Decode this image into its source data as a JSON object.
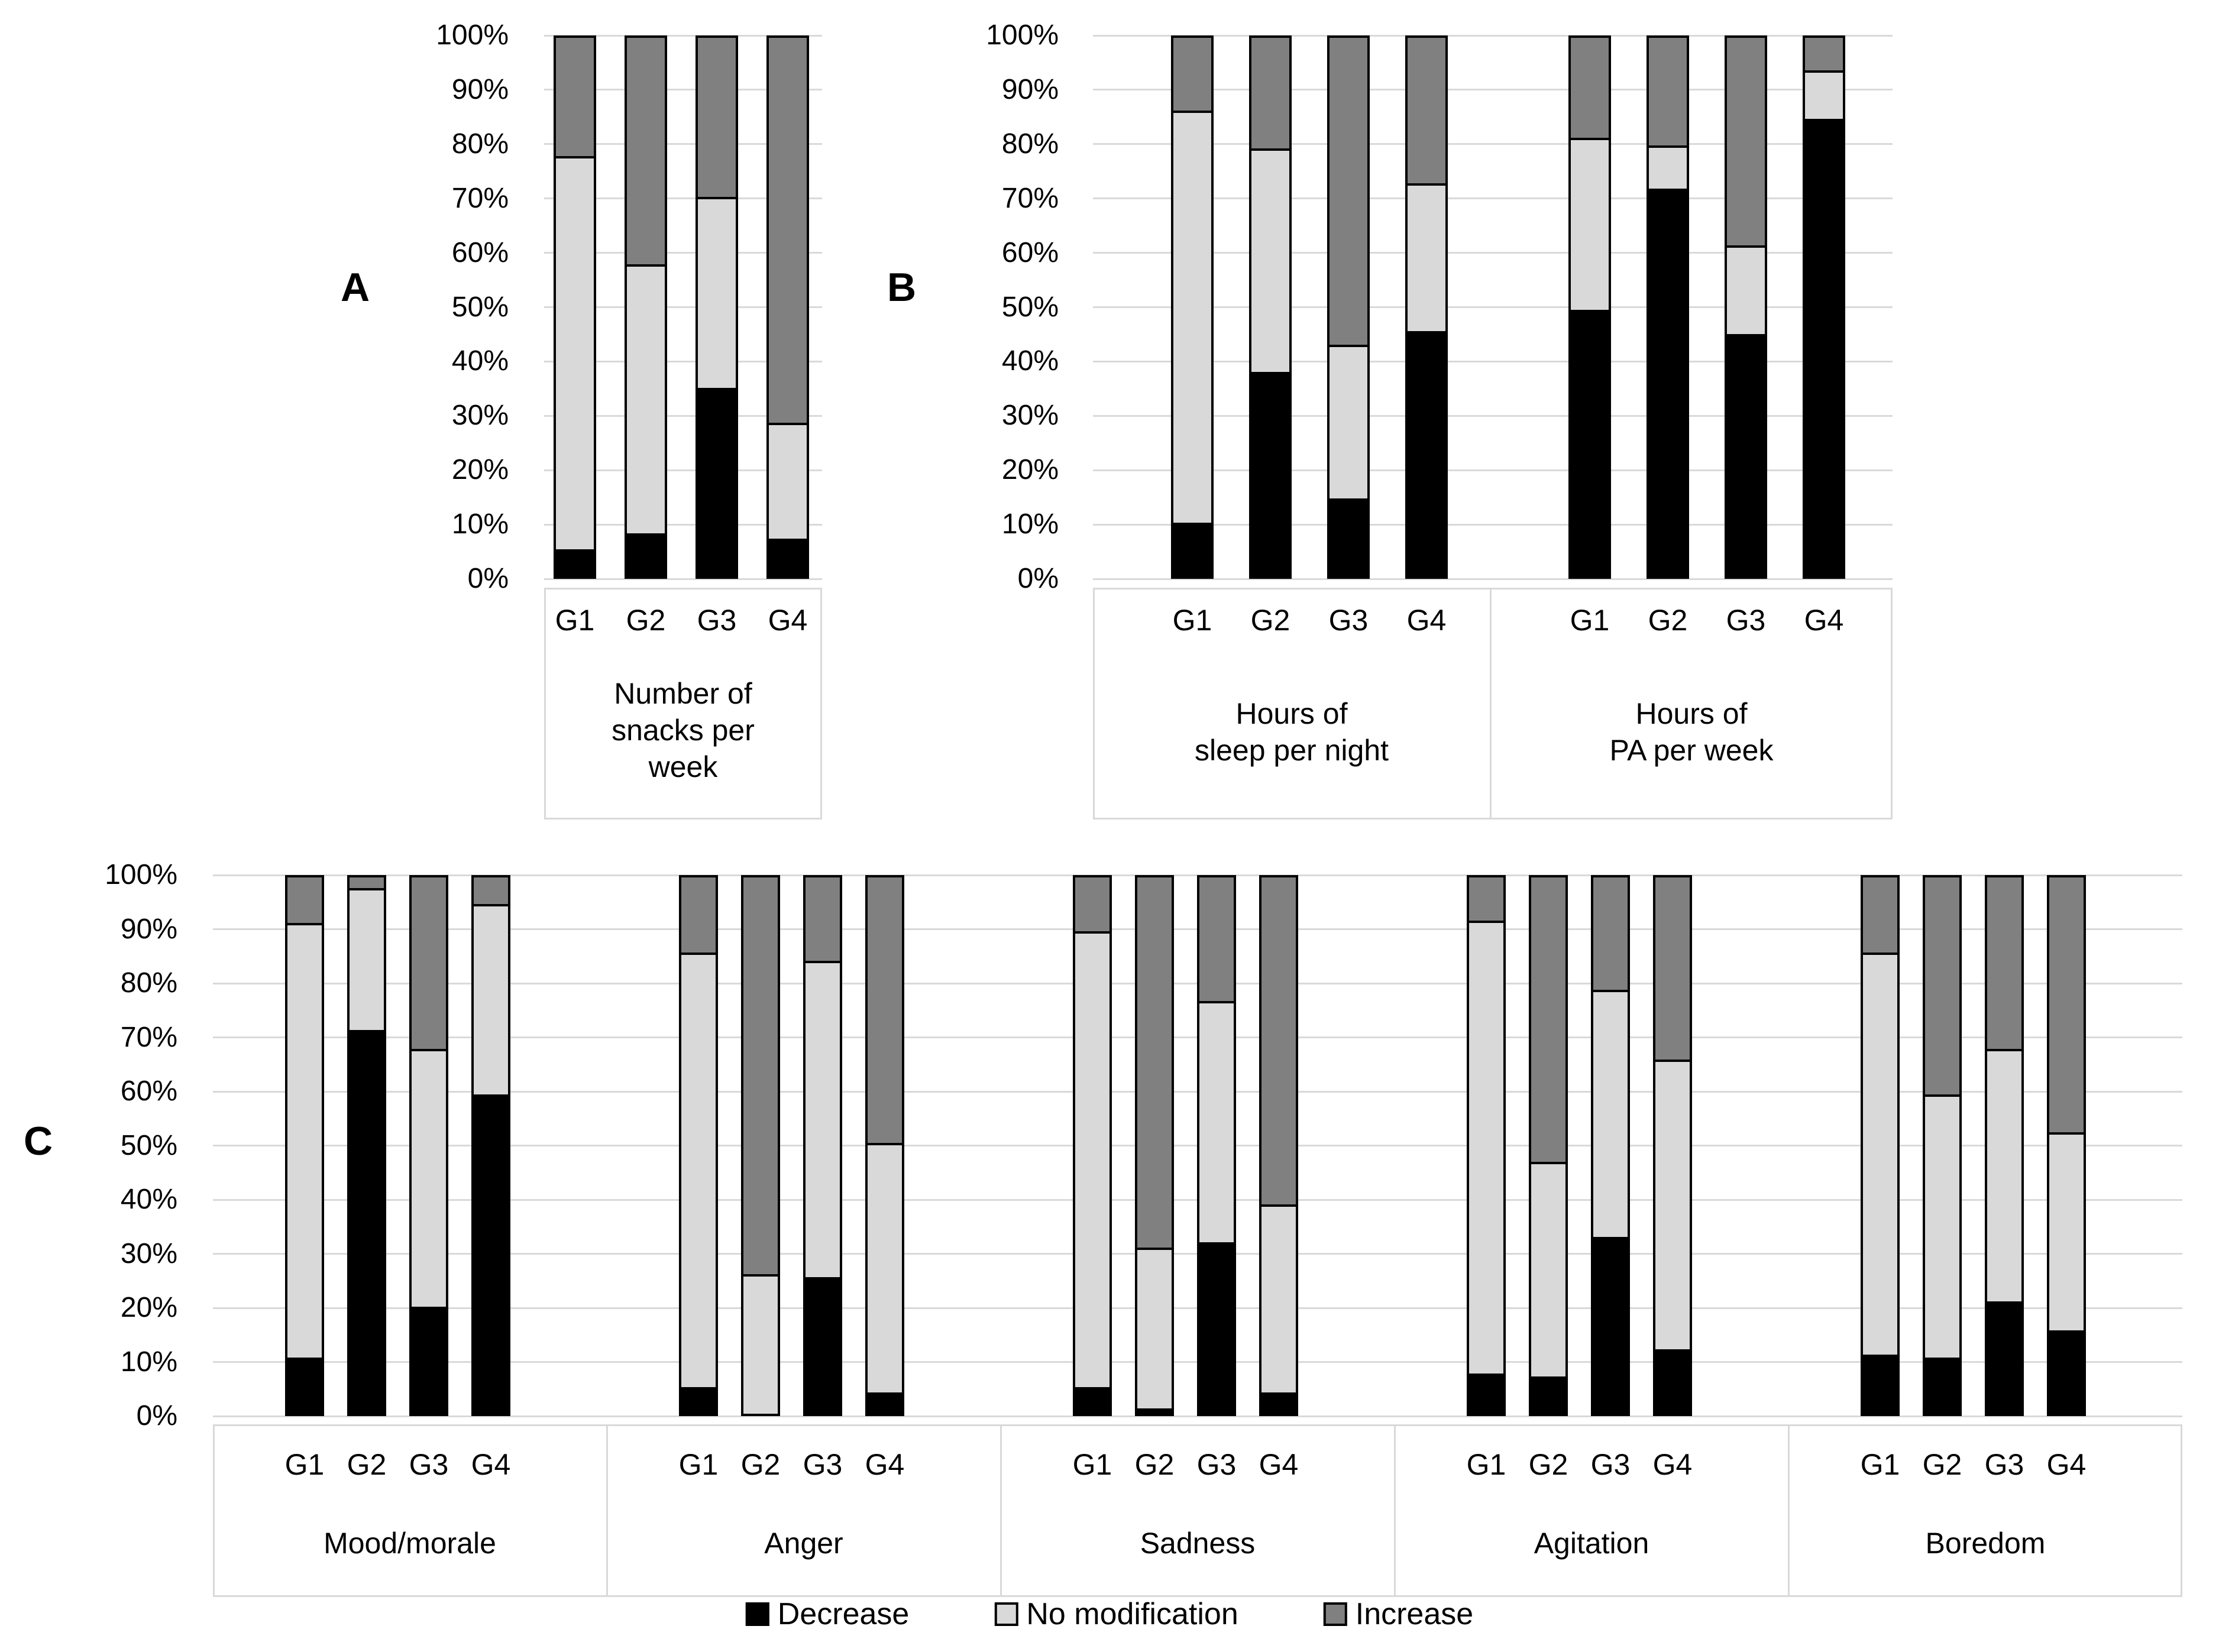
{
  "figure": {
    "description": "Three-panel 100% stacked bar chart of reported changes (Decrease / No modification / Increase) by group G1-G4"
  },
  "colors": {
    "decrease": "#000000",
    "no_modification": "#d9d9d9",
    "increase": "#808080",
    "bar_border": "#000000",
    "gridline": "#d9d9d9",
    "box_border": "#d9d9d9",
    "text": "#000000"
  },
  "chart_data": {
    "type": "bar",
    "stacked": true,
    "value_format": "percent",
    "ylim": [
      0,
      100
    ],
    "grid": true,
    "legend_position": "bottom",
    "yticks": [
      "0%",
      "10%",
      "20%",
      "30%",
      "40%",
      "50%",
      "60%",
      "70%",
      "80%",
      "90%",
      "100%"
    ],
    "legend": [
      {
        "label": "Decrease",
        "color": "#000000"
      },
      {
        "label": "No modification",
        "color": "#d9d9d9"
      },
      {
        "label": "Increase",
        "color": "#808080"
      }
    ],
    "panels": [
      {
        "label": "A",
        "groups": [
          {
            "name": "Number of snacks per week",
            "name_lines": [
              "Number of",
              "snacks per",
              "week"
            ],
            "categories": [
              "G1",
              "G2",
              "G3",
              "G4"
            ],
            "series": [
              {
                "name": "Decrease",
                "values": [
                  5,
                  8,
                  35,
                  7
                ]
              },
              {
                "name": "No modification",
                "values": [
                  73,
                  50,
                  35.5,
                  21.5
                ]
              },
              {
                "name": "Increase",
                "values": [
                  22,
                  42,
                  29.5,
                  71.5
                ]
              }
            ]
          }
        ]
      },
      {
        "label": "B",
        "groups": [
          {
            "name": "Hours of sleep per night",
            "name_lines": [
              "Hours of",
              "sleep per night"
            ],
            "categories": [
              "G1",
              "G2",
              "G3",
              "G4"
            ],
            "series": [
              {
                "name": "Decrease",
                "values": [
                  10,
                  38,
                  14.5,
                  45.5
                ]
              },
              {
                "name": "No modification",
                "values": [
                  76.5,
                  41.5,
                  28.5,
                  27.5
                ]
              },
              {
                "name": "Increase",
                "values": [
                  13.5,
                  20.5,
                  57,
                  27
                ]
              }
            ]
          },
          {
            "name": "Hours of PA per week",
            "name_lines": [
              "Hours of",
              "PA per week"
            ],
            "categories": [
              "G1",
              "G2",
              "G3",
              "G4"
            ],
            "series": [
              {
                "name": "Decrease",
                "values": [
                  49.5,
                  72,
                  45,
                  85
                ]
              },
              {
                "name": "No modification",
                "values": [
                  32,
                  8,
                  16.5,
                  9
                ]
              },
              {
                "name": "Increase",
                "values": [
                  18.5,
                  20,
                  38.5,
                  6
                ]
              }
            ]
          }
        ]
      },
      {
        "label": "C",
        "groups": [
          {
            "name": "Mood/morale",
            "name_lines": [
              "Mood/morale"
            ],
            "categories": [
              "G1",
              "G2",
              "G3",
              "G4"
            ],
            "series": [
              {
                "name": "Decrease",
                "values": [
                  10.5,
                  71.5,
                  20,
                  59.5
                ]
              },
              {
                "name": "No modification",
                "values": [
                  81,
                  26.5,
                  48,
                  35.5
                ]
              },
              {
                "name": "Increase",
                "values": [
                  8.5,
                  2,
                  32,
                  5
                ]
              }
            ]
          },
          {
            "name": "Anger",
            "name_lines": [
              "Anger"
            ],
            "categories": [
              "G1",
              "G2",
              "G3",
              "G4"
            ],
            "series": [
              {
                "name": "Decrease",
                "values": [
                  5,
                  0,
                  25.5,
                  4
                ]
              },
              {
                "name": "No modification",
                "values": [
                  81,
                  26,
                  59,
                  46.5
                ]
              },
              {
                "name": "Increase",
                "values": [
                  14,
                  74,
                  15.5,
                  49.5
                ]
              }
            ]
          },
          {
            "name": "Sadness",
            "name_lines": [
              "Sadness"
            ],
            "categories": [
              "G1",
              "G2",
              "G3",
              "G4"
            ],
            "series": [
              {
                "name": "Decrease",
                "values": [
                  5,
                  1,
                  32,
                  4
                ]
              },
              {
                "name": "No modification",
                "values": [
                  85,
                  30,
                  45,
                  35
                ]
              },
              {
                "name": "Increase",
                "values": [
                  10,
                  69,
                  23,
                  61
                ]
              }
            ]
          },
          {
            "name": "Agitation",
            "name_lines": [
              "Agitation"
            ],
            "categories": [
              "G1",
              "G2",
              "G3",
              "G4"
            ],
            "series": [
              {
                "name": "Decrease",
                "values": [
                  7.5,
                  7,
                  33,
                  12
                ]
              },
              {
                "name": "No modification",
                "values": [
                  84.5,
                  40,
                  46,
                  54
                ]
              },
              {
                "name": "Increase",
                "values": [
                  8,
                  53,
                  21,
                  34
                ]
              }
            ]
          },
          {
            "name": "Boredom",
            "name_lines": [
              "Boredom"
            ],
            "categories": [
              "G1",
              "G2",
              "G3",
              "G4"
            ],
            "series": [
              {
                "name": "Decrease",
                "values": [
                  11,
                  10.5,
                  21,
                  15.5
                ]
              },
              {
                "name": "No modification",
                "values": [
                  75,
                  49,
                  47,
                  37
                ]
              },
              {
                "name": "Increase",
                "values": [
                  14,
                  40.5,
                  32,
                  47.5
                ]
              }
            ]
          }
        ]
      }
    ]
  }
}
